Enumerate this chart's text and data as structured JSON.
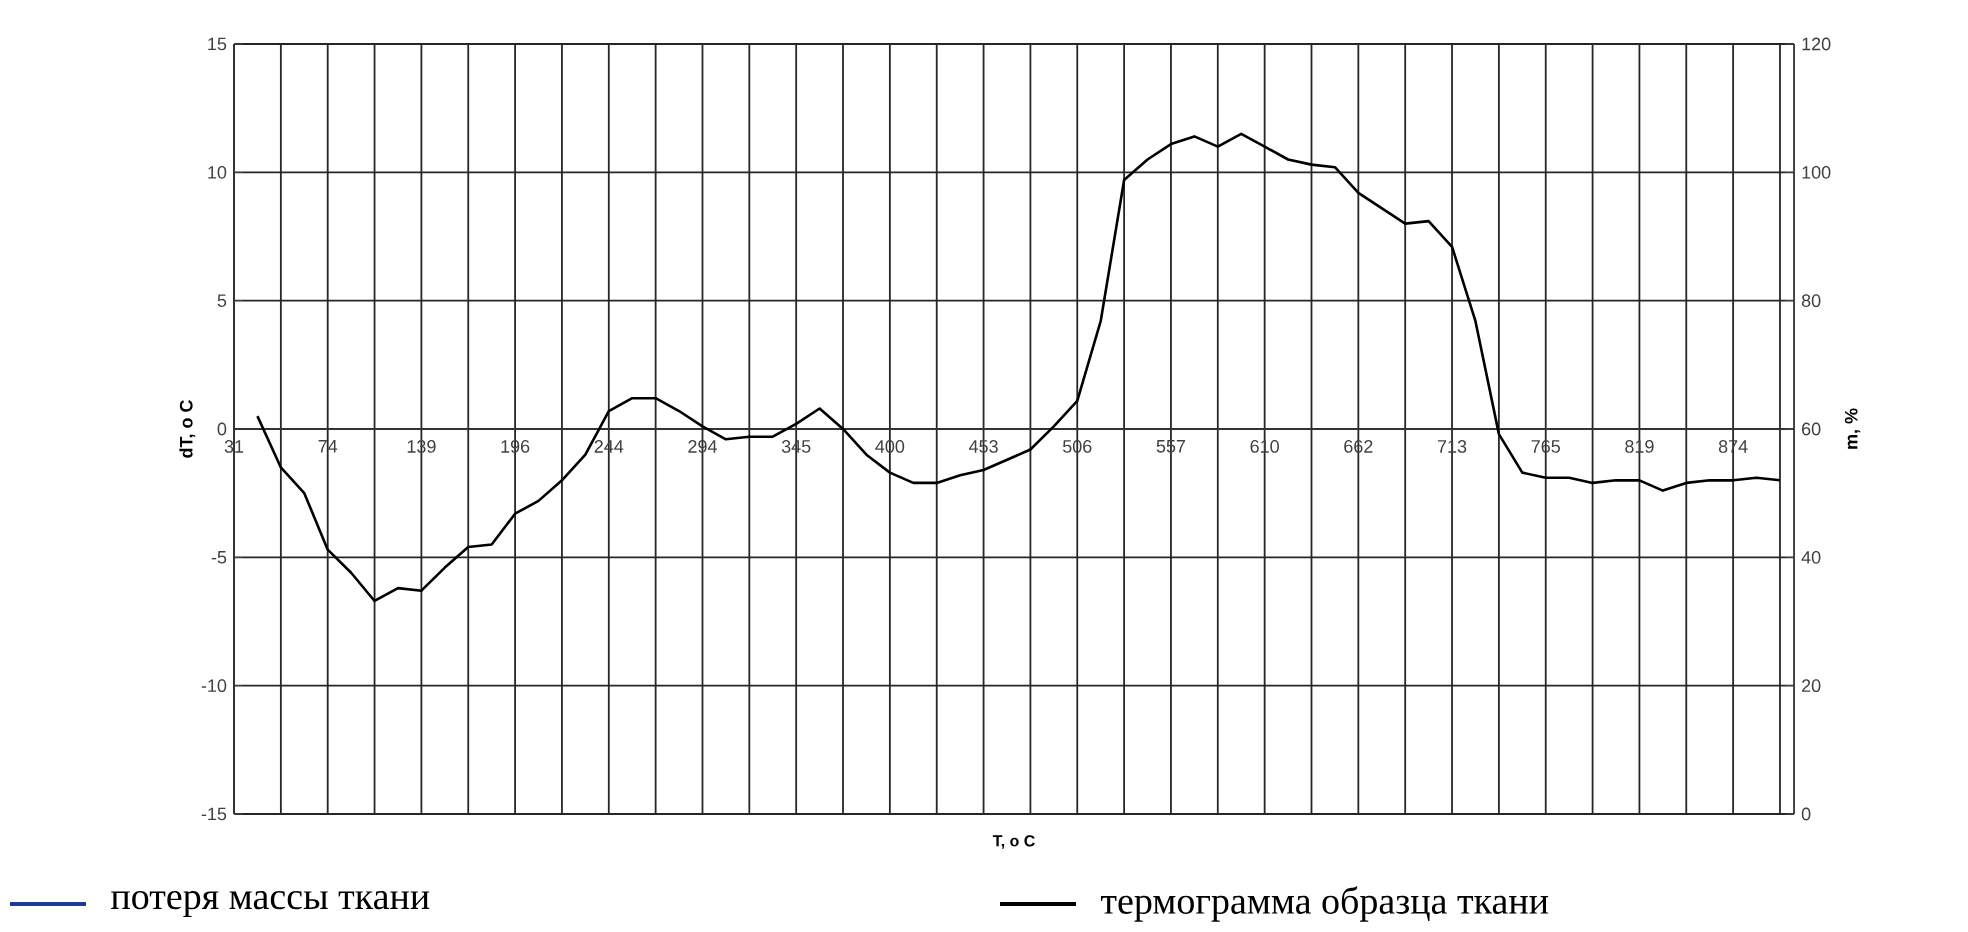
{
  "chart_data": {
    "type": "line",
    "xlabel": "T, o C",
    "ylabel": "dT, o C",
    "y2label": "m, %",
    "categories": [
      "31",
      null,
      null,
      null,
      "74",
      null,
      null,
      null,
      "139",
      null,
      null,
      null,
      "196",
      null,
      null,
      null,
      "244",
      null,
      null,
      null,
      "294",
      null,
      null,
      null,
      "345",
      null,
      null,
      null,
      "400",
      null,
      null,
      null,
      "453",
      null,
      null,
      null,
      "506",
      null,
      null,
      null,
      "557",
      null,
      null,
      null,
      "610",
      null,
      null,
      null,
      "662",
      null,
      null,
      null,
      "713",
      null,
      null,
      null,
      "765",
      null,
      null,
      null,
      "819",
      null,
      null,
      null,
      "874",
      null,
      null
    ],
    "ylim": [
      -15,
      15
    ],
    "yticks": [
      -15,
      -10,
      -5,
      0,
      5,
      10,
      15
    ],
    "y2lim": [
      0,
      120
    ],
    "y2ticks": [
      0,
      20,
      40,
      60,
      80,
      100,
      120
    ],
    "grid": true,
    "legend": "bottom",
    "series": [
      {
        "name": "потеря массы ткани",
        "color": "#1f3a93",
        "values": [
          null,
          null,
          null,
          null,
          null,
          null,
          null,
          null,
          null,
          null,
          null,
          null,
          null,
          null,
          null,
          null,
          null,
          null,
          null,
          null,
          null,
          null,
          null,
          null,
          null,
          null,
          null,
          null,
          null,
          null,
          null,
          null,
          null,
          null,
          null,
          null,
          null,
          null,
          null,
          null,
          null,
          null,
          null,
          null,
          null,
          null,
          null,
          null,
          null,
          null,
          null,
          null,
          null,
          null,
          null,
          null,
          null,
          null,
          null,
          null,
          null,
          null,
          null,
          null,
          null,
          null,
          null
        ]
      },
      {
        "name": "термограмма образца ткани",
        "color": "#000000",
        "values": [
          null,
          0.5,
          -1.5,
          -2.5,
          -4.7,
          -5.6,
          -6.7,
          -6.2,
          -6.3,
          -5.4,
          -4.6,
          -4.5,
          -3.3,
          -2.8,
          -2.0,
          -1.0,
          0.7,
          1.2,
          1.2,
          0.7,
          0.1,
          -0.4,
          -0.3,
          -0.3,
          0.2,
          0.8,
          0,
          -1.0,
          -1.7,
          -2.1,
          -2.1,
          -1.8,
          -1.6,
          -1.2,
          -0.8,
          0.1,
          1.1,
          4.2,
          9.7,
          10.5,
          11.1,
          11.4,
          11.0,
          11.5,
          11.0,
          10.5,
          10.3,
          10.2,
          9.2,
          8.6,
          8.0,
          8.1,
          7.1,
          4.2,
          -0.2,
          -1.7,
          -1.9,
          -1.9,
          -2.1,
          -2.0,
          -2.0,
          -2.4,
          -2.1,
          -2.0,
          -2.0,
          -1.9,
          -2.0
        ]
      }
    ]
  }
}
